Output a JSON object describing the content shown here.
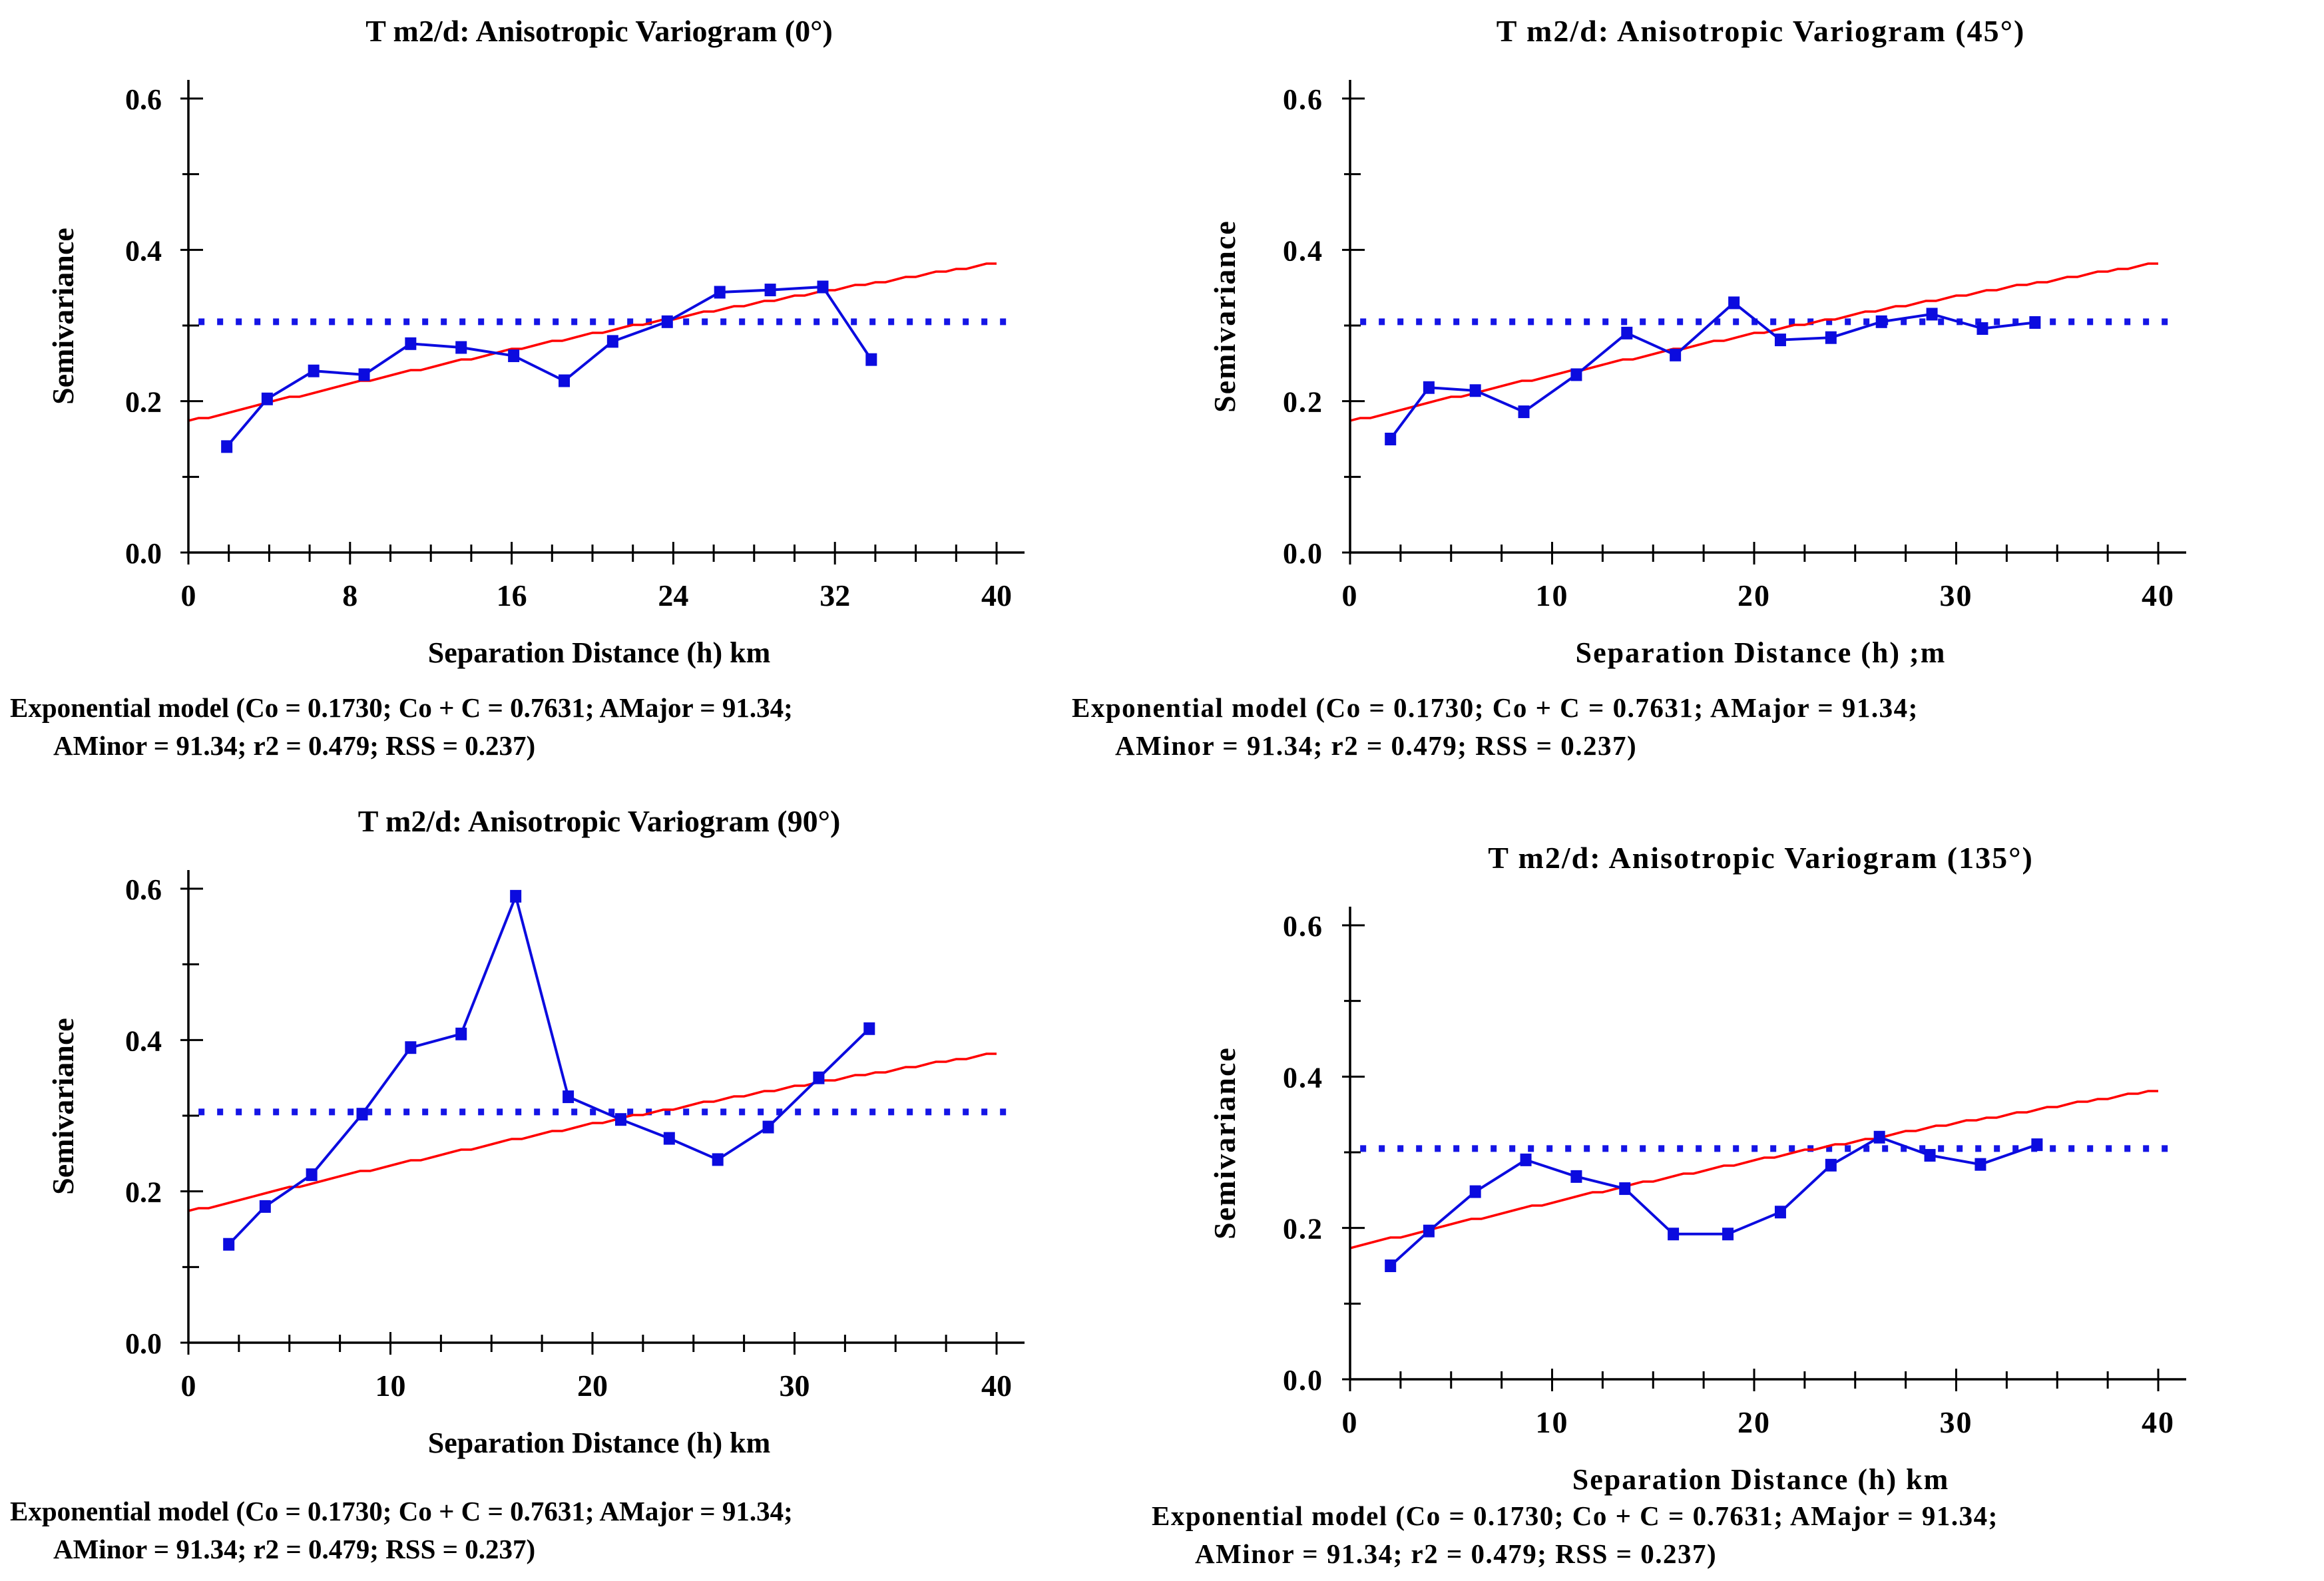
{
  "colors": {
    "series": "#0b0bdf",
    "marker": "#0b0bdf",
    "model_curve": "#ff0000",
    "variance_line": "#1515e6",
    "axis": "#000000",
    "text": "#000000",
    "background": "#ffffff"
  },
  "chart_data": [
    {
      "type": "line",
      "title": "T m2/d: Anisotropic Variogram (0°)",
      "ylabel": "Semivariance",
      "xlabel": "Separation Distance (h) km",
      "xlim": [
        0,
        40
      ],
      "ylim": [
        0.0,
        0.6
      ],
      "x_ticks": [
        0,
        8,
        16,
        24,
        32,
        40
      ],
      "x_tick_labels": [
        "0",
        "8",
        "16",
        "24",
        "32",
        "40"
      ],
      "x_minor_step": 2,
      "y_ticks": [
        0.0,
        0.2,
        0.4,
        0.6
      ],
      "y_tick_labels": [
        "0.0",
        "0.2",
        "0.4",
        "0.6"
      ],
      "y_minor_step": 0.1,
      "grid": false,
      "legend": "none",
      "variance_line_y": 0.305,
      "model": {
        "name": "Exponential",
        "Co": 0.173,
        "Co_plus_C": 0.7631,
        "A": 91.34,
        "r2": 0.479,
        "RSS": 0.237
      },
      "series": [
        {
          "name": "semivariance",
          "x": [
            1.9,
            3.9,
            6.2,
            8.7,
            11.0,
            13.5,
            16.1,
            18.6,
            21.0,
            23.7,
            26.3,
            28.8,
            31.4,
            33.8
          ],
          "y": [
            0.14,
            0.203,
            0.24,
            0.235,
            0.276,
            0.271,
            0.26,
            0.227,
            0.279,
            0.305,
            0.344,
            0.347,
            0.351,
            0.255
          ]
        }
      ],
      "caption_line1": "Exponential model (Co = 0.1730; Co + C = 0.7631; AMajor = 91.34;",
      "caption_line2": "AMinor = 91.34; r2 = 0.479; RSS = 0.237)"
    },
    {
      "type": "line",
      "title": "T m2/d: Anisotropic Variogram (45°)",
      "ylabel": "Semivariance",
      "xlabel": "Separation Distance (h) ;m",
      "xlim": [
        0,
        40
      ],
      "ylim": [
        0.0,
        0.6
      ],
      "x_ticks": [
        0,
        10,
        20,
        30,
        40
      ],
      "x_tick_labels": [
        "0",
        "10",
        "20",
        "30",
        "40"
      ],
      "x_minor_step": 2.5,
      "y_ticks": [
        0.0,
        0.2,
        0.4,
        0.6
      ],
      "y_tick_labels": [
        "0.0",
        "0.2",
        "0.4",
        "0.6"
      ],
      "y_minor_step": 0.1,
      "grid": false,
      "legend": "none",
      "variance_line_y": 0.305,
      "model": {
        "name": "Exponential",
        "Co": 0.173,
        "Co_plus_C": 0.7631,
        "A": 91.34,
        "r2": 0.479,
        "RSS": 0.237
      },
      "series": [
        {
          "name": "semivariance",
          "x": [
            2.0,
            3.9,
            6.2,
            8.6,
            11.2,
            13.7,
            16.1,
            19.0,
            21.3,
            23.8,
            26.3,
            28.8,
            31.3,
            33.9
          ],
          "y": [
            0.15,
            0.218,
            0.214,
            0.186,
            0.235,
            0.29,
            0.261,
            0.33,
            0.281,
            0.284,
            0.305,
            0.315,
            0.296,
            0.304
          ]
        }
      ],
      "caption_line1": "Exponential model (Co = 0.1730; Co + C = 0.7631; AMajor = 91.34;",
      "caption_line2": "AMinor = 91.34; r2 = 0.479; RSS = 0.237)"
    },
    {
      "type": "line",
      "title": "T m2/d: Anisotropic Variogram (90°)",
      "ylabel": "Semivariance",
      "xlabel": "Separation Distance (h) km",
      "xlim": [
        0,
        40
      ],
      "ylim": [
        0.0,
        0.6
      ],
      "x_ticks": [
        0,
        10,
        20,
        30,
        40
      ],
      "x_tick_labels": [
        "0",
        "10",
        "20",
        "30",
        "40"
      ],
      "x_minor_step": 2.5,
      "y_ticks": [
        0.0,
        0.2,
        0.4,
        0.6
      ],
      "y_tick_labels": [
        "0.0",
        "0.2",
        "0.4",
        "0.6"
      ],
      "y_minor_step": 0.1,
      "grid": false,
      "legend": "none",
      "variance_line_y": 0.305,
      "model": {
        "name": "Exponential",
        "Co": 0.173,
        "Co_plus_C": 0.7631,
        "A": 91.34,
        "r2": 0.479,
        "RSS": 0.237
      },
      "series": [
        {
          "name": "semivariance",
          "x": [
            2.0,
            3.8,
            6.1,
            8.6,
            11.0,
            13.5,
            16.2,
            18.8,
            21.4,
            23.8,
            26.2,
            28.7,
            31.2,
            33.7
          ],
          "y": [
            0.13,
            0.18,
            0.222,
            0.302,
            0.39,
            0.408,
            0.59,
            0.325,
            0.295,
            0.27,
            0.242,
            0.285,
            0.35,
            0.415
          ]
        }
      ],
      "caption_line1": "Exponential model (Co = 0.1730; Co + C = 0.7631; AMajor = 91.34;",
      "caption_line2": "AMinor = 91.34; r2 = 0.479; RSS = 0.237)"
    },
    {
      "type": "line",
      "title": "T m2/d: Anisotropic Variogram (135°)",
      "ylabel": "Semivariance",
      "xlabel": "Separation Distance (h) km",
      "xlim": [
        0,
        40
      ],
      "ylim": [
        0.0,
        0.6
      ],
      "x_ticks": [
        0,
        10,
        20,
        30,
        40
      ],
      "x_tick_labels": [
        "0",
        "10",
        "20",
        "30",
        "40"
      ],
      "x_minor_step": 2.5,
      "y_ticks": [
        0.0,
        0.2,
        0.4,
        0.6
      ],
      "y_tick_labels": [
        "0.0",
        "0.2",
        "0.4",
        "0.6"
      ],
      "y_minor_step": 0.1,
      "grid": false,
      "legend": "none",
      "variance_line_y": 0.305,
      "model": {
        "name": "Exponential",
        "Co": 0.173,
        "Co_plus_C": 0.7631,
        "A": 91.34,
        "r2": 0.479,
        "RSS": 0.237
      },
      "series": [
        {
          "name": "semivariance",
          "x": [
            2.0,
            3.9,
            6.2,
            8.7,
            11.2,
            13.6,
            16.0,
            18.7,
            21.3,
            23.8,
            26.2,
            28.7,
            31.2,
            34.0
          ],
          "y": [
            0.15,
            0.196,
            0.248,
            0.29,
            0.268,
            0.252,
            0.192,
            0.192,
            0.221,
            0.283,
            0.32,
            0.296,
            0.284,
            0.31
          ]
        }
      ],
      "caption_line1": "Exponential model (Co = 0.1730; Co + C = 0.7631; AMajor = 91.34;",
      "caption_line2": "AMinor = 91.34; r2 = 0.479; RSS = 0.237)"
    }
  ]
}
